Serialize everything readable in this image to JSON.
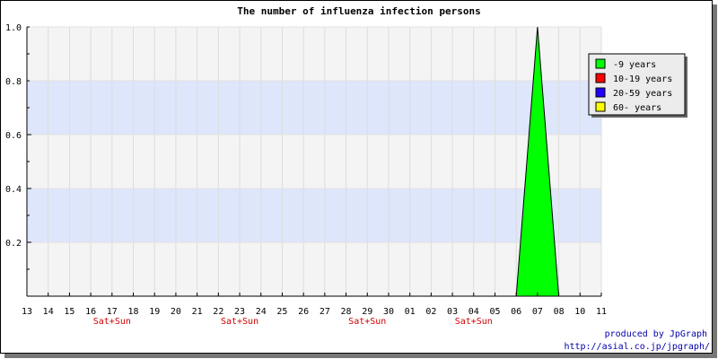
{
  "chart_data": {
    "type": "area",
    "title": "The number of influenza infection persons",
    "xlabel": "",
    "ylabel": "",
    "categories": [
      "13",
      "14",
      "15",
      "16",
      "17",
      "18",
      "19",
      "20",
      "21",
      "22",
      "23",
      "24",
      "25",
      "26",
      "27",
      "28",
      "29",
      "30",
      "01",
      "02",
      "03",
      "04",
      "05",
      "06",
      "07",
      "08",
      "10",
      "11"
    ],
    "weekend_label": "Sat+Sun",
    "weekend_after": [
      "16",
      "22",
      "28",
      "03"
    ],
    "ylim": [
      0,
      1.0
    ],
    "yticks": [
      "0.2",
      "0.4",
      "0.6",
      "0.8",
      "1.0"
    ],
    "grid": true,
    "band_colors": [
      "#f4f4f4",
      "#dde6fb"
    ],
    "legend_position": "right",
    "series": [
      {
        "name": "-9 years",
        "color": "#00ff00",
        "values": [
          0,
          0,
          0,
          0,
          0,
          0,
          0,
          0,
          0,
          0,
          0,
          0,
          0,
          0,
          0,
          0,
          0,
          0,
          0,
          0,
          0,
          0,
          0,
          0,
          1,
          0,
          0,
          0
        ]
      },
      {
        "name": "10-19 years",
        "color": "#ff0000",
        "values": [
          0,
          0,
          0,
          0,
          0,
          0,
          0,
          0,
          0,
          0,
          0,
          0,
          0,
          0,
          0,
          0,
          0,
          0,
          0,
          0,
          0,
          0,
          0,
          0,
          0,
          0,
          0,
          0
        ]
      },
      {
        "name": "20-59 years",
        "color": "#2200ff",
        "values": [
          0,
          0,
          0,
          0,
          0,
          0,
          0,
          0,
          0,
          0,
          0,
          0,
          0,
          0,
          0,
          0,
          0,
          0,
          0,
          0,
          0,
          0,
          0,
          0,
          0,
          0,
          0,
          0
        ]
      },
      {
        "name": "60- years",
        "color": "#ffff00",
        "values": [
          0,
          0,
          0,
          0,
          0,
          0,
          0,
          0,
          0,
          0,
          0,
          0,
          0,
          0,
          0,
          0,
          0,
          0,
          0,
          0,
          0,
          0,
          0,
          0,
          0,
          0,
          0,
          0
        ]
      }
    ]
  },
  "credit": {
    "line1": "produced by JpGraph",
    "line2": "http://asial.co.jp/jpgraph/"
  }
}
